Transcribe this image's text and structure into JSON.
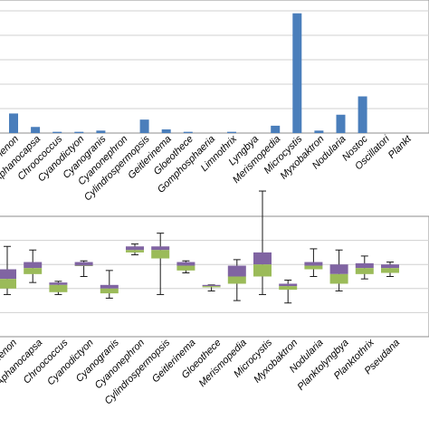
{
  "chart_data": [
    {
      "type": "bar",
      "title": "",
      "xlabel": "",
      "ylabel": "",
      "grid": true,
      "legend": "none",
      "ylim": [
        0,
        100
      ],
      "color": "#4a7ebb",
      "categories": [
        "Anabaenon",
        "Aphanocapsa",
        "Chroococcus",
        "Cyanodictyon",
        "Cyanogranis",
        "Cyanonephron",
        "Cylindrospermopsis",
        "Geitlerinema",
        "Gloeothece",
        "Gomphosphaeria",
        "Limnothrix",
        "Lyngbya",
        "Merismopedia",
        "Microcystis",
        "Myxobaktron",
        "Nodularia",
        "Nostoc",
        "Oscillatoria",
        "Planktothrix"
      ],
      "labels": [
        "nenon",
        "Aphanocapsa",
        "Chroococcus",
        "Cyanodictyon",
        "Cyanogranis",
        "Cyanonephron",
        "Cylindrospermopsis",
        "Geitlerinema",
        "Gloeothece",
        "Gomphosphaeria",
        "Limnothrix",
        "Lyngbya",
        "Merismopedia",
        "Microcystis",
        "Myxobaktron",
        "Nodularia",
        "Nostoc",
        "Oscillatori",
        "Plankt"
      ],
      "values": [
        16,
        5,
        1,
        1,
        2,
        0,
        11,
        3,
        1,
        0,
        1,
        0,
        6,
        98,
        2,
        15,
        30,
        0,
        0
      ]
    },
    {
      "type": "box",
      "title": "",
      "xlabel": "",
      "ylabel": "",
      "grid": true,
      "legend": "none",
      "ylim": [
        0,
        100
      ],
      "colors": {
        "upper_box": "#8064a2",
        "lower_box": "#9bbb59"
      },
      "categories": [
        "Anabaenon",
        "Aphanocapsa",
        "Chroococcus",
        "Cyanodictyon",
        "Cyanogranis",
        "Cyanonephron",
        "Cylindrospermopsis",
        "Geitlerinema",
        "Gloeothece",
        "Merismopedia",
        "Microcystis",
        "Myxobaktron",
        "Nodularia",
        "Planktolyngbya",
        "Planktothrix",
        "Pseudanabaena"
      ],
      "labels": [
        "nenon",
        "Aphanocapsa",
        "Chroococcus",
        "Cyanodictyon",
        "Cyanogranis",
        "Cyanonephron",
        "Cylindrospermopsis",
        "Geitlerinema",
        "Gloeothece",
        "Merismopedia",
        "Microcystis",
        "Myxobaktron",
        "Nodularia",
        "Planktolyngbya",
        "Planktothrix",
        "Pseudana"
      ],
      "series": [
        {
          "min": 35,
          "q1": 40,
          "median": 48,
          "q3": 56,
          "max": 75
        },
        {
          "min": 45,
          "q1": 52,
          "median": 57,
          "q3": 62,
          "max": 72
        },
        {
          "min": 35,
          "q1": 37,
          "median": 43,
          "q3": 45,
          "max": 46
        },
        {
          "min": 50,
          "q1": 59,
          "median": 59,
          "q3": 62,
          "max": 63
        },
        {
          "min": 32,
          "q1": 36,
          "median": 40,
          "q3": 43,
          "max": 55
        },
        {
          "min": 68,
          "q1": 70,
          "median": 72,
          "q3": 75,
          "max": 77
        },
        {
          "min": 35,
          "q1": 65,
          "median": 72,
          "q3": 75,
          "max": 86
        },
        {
          "min": 53,
          "q1": 55,
          "median": 59,
          "q3": 62,
          "max": 63
        },
        {
          "min": 38,
          "q1": 41,
          "median": 42,
          "q3": 43,
          "max": 43
        },
        {
          "min": 30,
          "q1": 44,
          "median": 50,
          "q3": 59,
          "max": 64
        },
        {
          "min": 35,
          "q1": 50,
          "median": 60,
          "q3": 70,
          "max": 121
        },
        {
          "min": 28,
          "q1": 39,
          "median": 42,
          "q3": 44,
          "max": 47
        },
        {
          "min": 50,
          "q1": 56,
          "median": 59,
          "q3": 62,
          "max": 73
        },
        {
          "min": 38,
          "q1": 44,
          "median": 52,
          "q3": 60,
          "max": 72
        },
        {
          "min": 48,
          "q1": 52,
          "median": 57,
          "q3": 61,
          "max": 67
        },
        {
          "min": 50,
          "q1": 53,
          "median": 57,
          "q3": 60,
          "max": 62
        }
      ]
    }
  ]
}
